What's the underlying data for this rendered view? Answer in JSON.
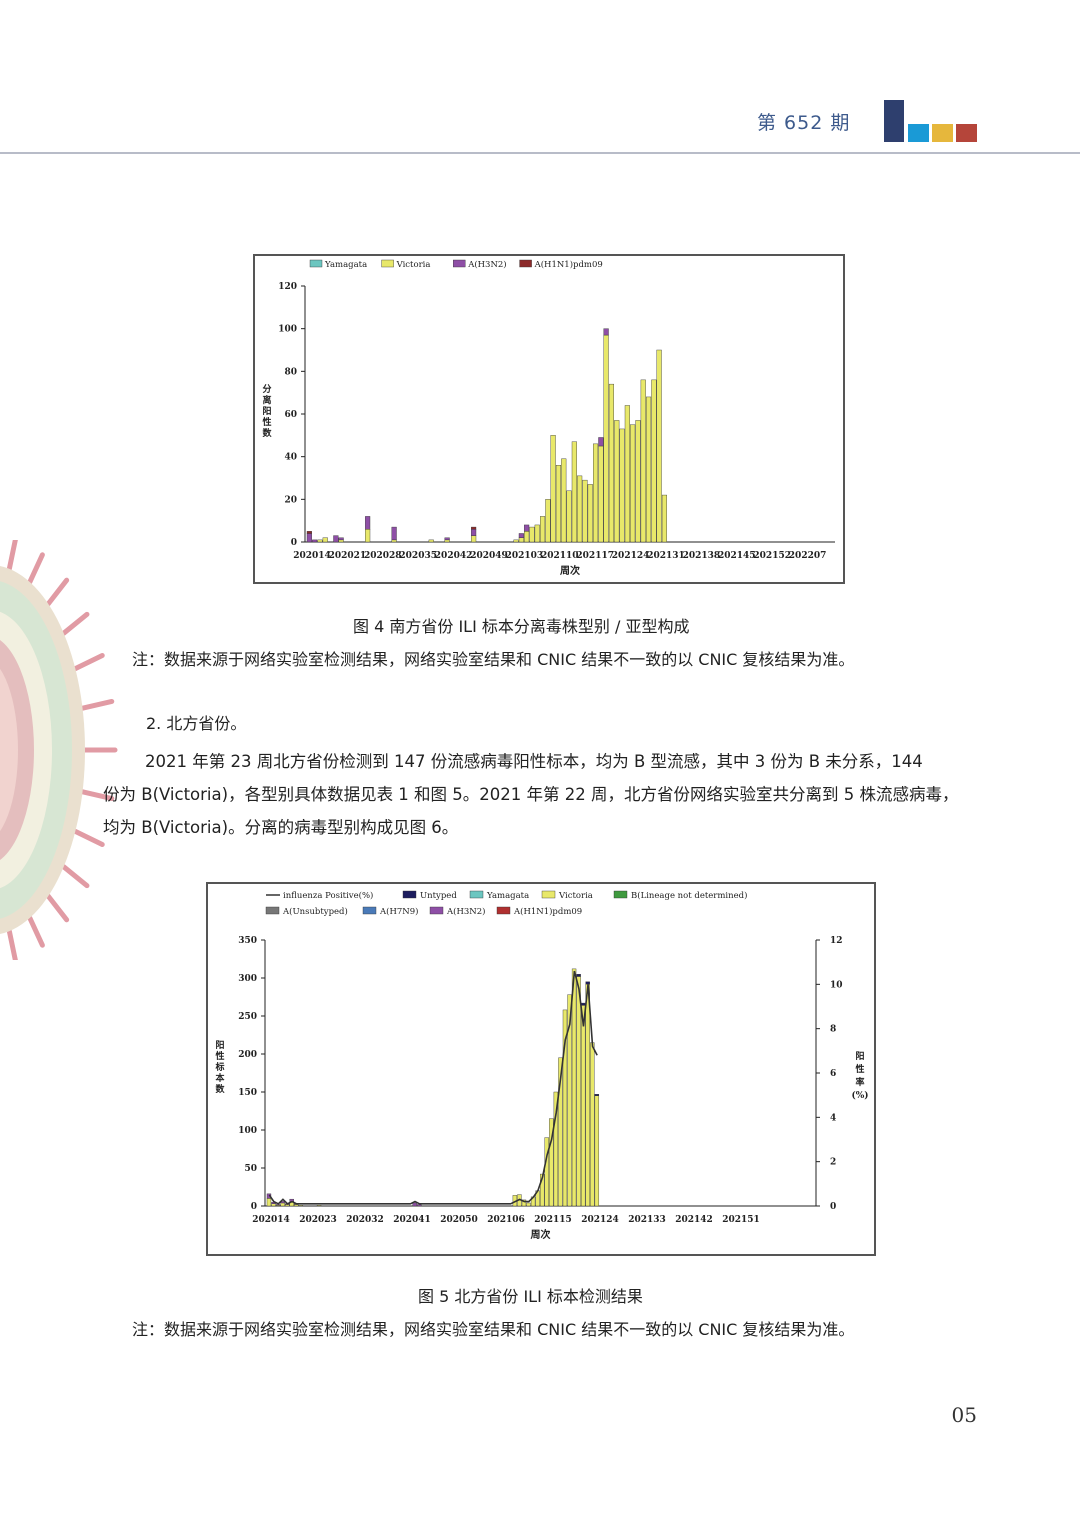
{
  "header": {
    "issue": "第 652 期",
    "logo_colors": [
      "#2e3f6e",
      "#1a9ad6",
      "#e6b73c",
      "#b5453a"
    ]
  },
  "figure4": {
    "caption": "图 4  南方省份 ILI 标本分离毒株型别 / 亚型构成",
    "note": "注：数据来源于网络实验室检测结果，网络实验室结果和 CNIC 结果不一致的以 CNIC 复核结果为准。",
    "chart_data": {
      "type": "bar",
      "stacked": true,
      "xlabel": "周次",
      "ylabel": "分离阳性数",
      "ylim": [
        0,
        120
      ],
      "yticks": [
        0,
        20,
        40,
        60,
        80,
        100,
        120
      ],
      "xtick_labels": [
        "202014",
        "202021",
        "202028",
        "202035",
        "202042",
        "202049",
        "202103",
        "202110",
        "202117",
        "202124",
        "202131",
        "202138",
        "202145",
        "202152",
        "202207"
      ],
      "legend": [
        "Yamagata",
        "Victoria",
        "A(H3N2)",
        "A(H1N1)pdm09"
      ],
      "colors": {
        "Yamagata": "#6cc6c0",
        "Victoria": "#e8e86a",
        "A(H3N2)": "#8e4fa6",
        "A(H1N1)pdm09": "#8c2a2a"
      },
      "series": [
        {
          "name": "Victoria",
          "values": [
            0,
            0,
            1,
            2,
            0,
            0,
            1,
            0,
            0,
            0,
            0,
            6,
            0,
            0,
            0,
            0,
            1,
            0,
            0,
            0,
            0,
            0,
            0,
            1,
            0,
            0,
            1,
            0,
            0,
            0,
            0,
            3,
            0,
            0,
            0,
            0,
            0,
            0,
            0,
            1,
            2,
            5,
            7,
            8,
            12,
            20,
            50,
            36,
            39,
            24,
            47,
            31,
            29,
            27,
            46,
            45,
            97,
            74,
            57,
            53,
            64,
            55,
            57,
            76,
            68,
            76,
            90,
            22
          ]
        },
        {
          "name": "A(H3N2)",
          "values": [
            4,
            1,
            0,
            0,
            0,
            3,
            1,
            0,
            0,
            0,
            0,
            6,
            0,
            0,
            0,
            0,
            6,
            0,
            0,
            0,
            0,
            0,
            0,
            0,
            0,
            0,
            1,
            0,
            0,
            0,
            0,
            3,
            0,
            0,
            0,
            0,
            0,
            0,
            0,
            0,
            2,
            3,
            0,
            0,
            0,
            0,
            0,
            0,
            0,
            0,
            0,
            0,
            0,
            0,
            0,
            4,
            3,
            0,
            0,
            0,
            0,
            0,
            0,
            0,
            0,
            0,
            0,
            0
          ]
        },
        {
          "name": "A(H1N1)pdm09",
          "values": [
            1,
            0,
            0,
            0,
            0,
            0,
            0,
            0,
            0,
            0,
            0,
            0,
            0,
            0,
            0,
            0,
            0,
            0,
            0,
            0,
            0,
            0,
            0,
            0,
            0,
            0,
            0,
            0,
            0,
            0,
            0,
            1,
            0,
            0,
            0,
            0,
            0,
            0,
            0,
            0,
            0,
            0,
            0,
            0,
            0,
            0,
            0,
            0,
            0,
            0,
            0,
            0,
            0,
            0,
            0,
            0,
            0,
            0,
            0,
            0,
            0,
            0,
            0,
            0,
            0,
            0,
            0,
            0
          ]
        }
      ],
      "n_weeks": 100
    }
  },
  "section": {
    "heading": "2. 北方省份。",
    "para_lines": [
      "2021 年第 23 周北方省份检测到 147 份流感病毒阳性标本，均为 B 型流感，其中 3 份为 B 未分系，144",
      "份为 B(Victoria)，各型别具体数据见表 1 和图 5。2021 年第 22 周，北方省份网络实验室共分离到 5 株流感病毒，",
      "均为 B(Victoria)。分离的病毒型别构成见图 6。"
    ]
  },
  "figure5": {
    "caption": "图 5  北方省份 ILI 标本检测结果",
    "note": "注：数据来源于网络实验室检测结果，网络实验室结果和 CNIC 结果不一致的以 CNIC 复核结果为准。",
    "chart_data": {
      "type": "bar",
      "stacked": true,
      "xlabel": "周次",
      "ylabel": "阳性标本数",
      "y2label": "阳性率(%)",
      "ylim": [
        0,
        350
      ],
      "yticks": [
        0,
        50,
        100,
        150,
        200,
        250,
        300,
        350
      ],
      "y2lim": [
        0,
        12
      ],
      "y2ticks": [
        0,
        2,
        4,
        6,
        8,
        10,
        12
      ],
      "xtick_labels": [
        "202014",
        "202023",
        "202032",
        "202041",
        "202050",
        "202106",
        "202115",
        "202124",
        "202133",
        "202142",
        "202151"
      ],
      "legend": [
        "influenza Positive(%)",
        "Untyped",
        "Yamagata",
        "Victoria",
        "B(Lineage not determined)",
        "A(Unsubtyped)",
        "A(H7N9)",
        "A(H3N2)",
        "A(H1N1)pdm09"
      ],
      "colors": {
        "influenza Positive(%)": "#333333",
        "Untyped": "#1d1d5e",
        "Yamagata": "#6cc6c0",
        "Victoria": "#e8e86a",
        "B(Lineage not determined)": "#3f9a3f",
        "A(Unsubtyped)": "#777777",
        "A(H7N9)": "#4a7ab8",
        "A(H3N2)": "#8e4fa6",
        "A(H1N1)pdm09": "#b03030"
      },
      "series": [
        {
          "name": "Victoria",
          "values": [
            10,
            3,
            1,
            4,
            2,
            6,
            2,
            1,
            0,
            0,
            0,
            1,
            0,
            0,
            0,
            0,
            0,
            0,
            0,
            0,
            0,
            0,
            0,
            0,
            0,
            0,
            0,
            0,
            0,
            0,
            0,
            0,
            0,
            0,
            0,
            0,
            0,
            0,
            0,
            0,
            0,
            0,
            0,
            0,
            0,
            0,
            0,
            0,
            0,
            0,
            0,
            0,
            0,
            0,
            14,
            15,
            8,
            4,
            12,
            20,
            42,
            90,
            115,
            150,
            195,
            258,
            278,
            312,
            302,
            264,
            292,
            215,
            145
          ]
        },
        {
          "name": "A(H3N2)",
          "values": [
            6,
            2,
            1,
            2,
            1,
            3,
            1,
            0,
            0,
            0,
            0,
            0,
            0,
            0,
            0,
            0,
            0,
            0,
            0,
            0,
            0,
            0,
            0,
            0,
            0,
            0,
            0,
            0,
            0,
            0,
            0,
            0,
            4,
            2,
            0,
            0,
            0,
            0,
            0,
            0,
            0,
            0,
            0,
            0,
            0,
            0,
            0,
            0,
            0,
            0,
            0,
            0,
            0,
            0,
            0,
            0,
            0,
            0,
            0,
            0,
            0,
            0,
            0,
            0,
            0,
            0,
            0,
            0,
            0,
            0,
            0,
            0,
            0
          ]
        },
        {
          "name": "Untyped",
          "values": [
            0,
            0,
            0,
            0,
            0,
            0,
            0,
            0,
            0,
            0,
            0,
            0,
            0,
            0,
            0,
            0,
            0,
            0,
            0,
            0,
            0,
            0,
            0,
            0,
            0,
            0,
            0,
            0,
            0,
            0,
            0,
            0,
            0,
            0,
            0,
            0,
            0,
            0,
            0,
            0,
            0,
            0,
            0,
            0,
            0,
            0,
            0,
            0,
            0,
            0,
            0,
            0,
            0,
            0,
            0,
            0,
            0,
            0,
            0,
            0,
            0,
            0,
            0,
            0,
            0,
            0,
            0,
            0,
            3,
            3,
            3,
            0,
            2
          ]
        }
      ],
      "positive_rate": [
        0.5,
        0.2,
        0.1,
        0.3,
        0.1,
        0.2,
        0.1,
        0.1,
        0.1,
        0.1,
        0.1,
        0.1,
        0.1,
        0.1,
        0.1,
        0.1,
        0.1,
        0.1,
        0.1,
        0.1,
        0.1,
        0.1,
        0.1,
        0.1,
        0.1,
        0.1,
        0.1,
        0.1,
        0.1,
        0.1,
        0.1,
        0.1,
        0.2,
        0.1,
        0.1,
        0.1,
        0.1,
        0.1,
        0.1,
        0.1,
        0.1,
        0.1,
        0.1,
        0.1,
        0.1,
        0.1,
        0.1,
        0.1,
        0.1,
        0.1,
        0.1,
        0.1,
        0.1,
        0.1,
        0.2,
        0.3,
        0.2,
        0.2,
        0.4,
        0.7,
        1.3,
        2.3,
        3.0,
        4.2,
        5.8,
        7.5,
        8.2,
        10.6,
        9.8,
        8.1,
        10.0,
        7.2,
        6.8
      ],
      "n_weeks": 121
    }
  },
  "page_number": "05"
}
